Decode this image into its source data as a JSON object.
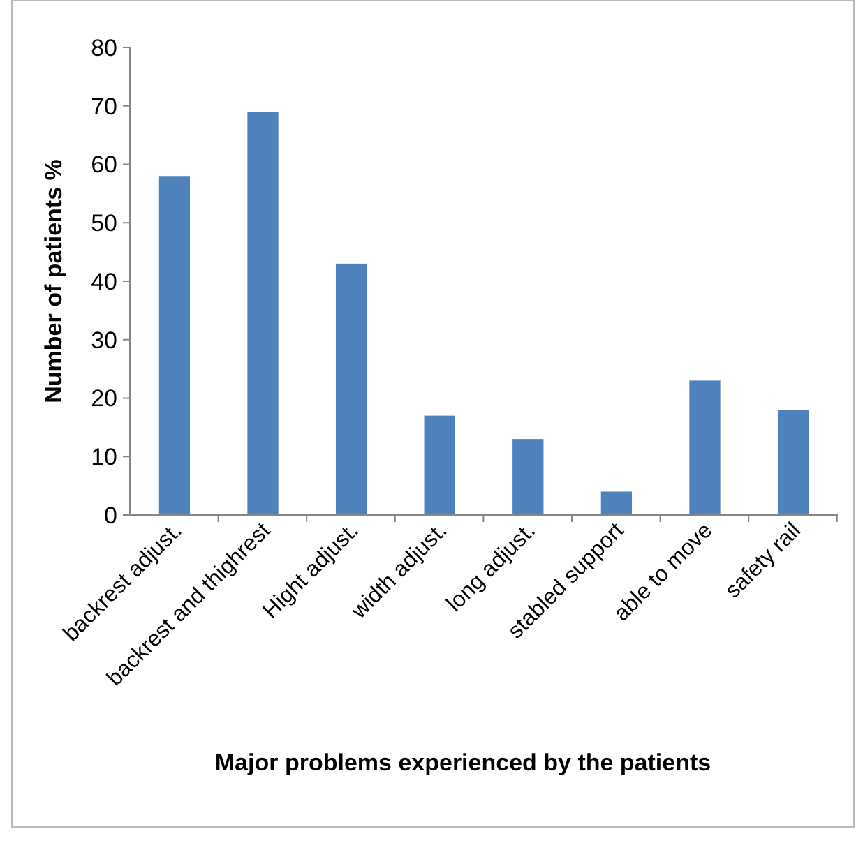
{
  "chart_data": {
    "type": "bar",
    "xlabel": "Major problems experienced by the patients",
    "ylabel": "Number of patients %",
    "categories": [
      "backrest adjust.",
      "backrest and thighrest",
      "Hight adjust.",
      "width adjust.",
      "long adjust.",
      "stabled support",
      "able to move",
      "safety rail"
    ],
    "values": [
      58,
      69,
      43,
      17,
      13,
      4,
      23,
      18
    ],
    "color": "#4f81bd",
    "ylim": [
      0,
      80
    ],
    "yticks": [
      0,
      10,
      20,
      30,
      40,
      50,
      60,
      70,
      80
    ],
    "grid": false
  }
}
